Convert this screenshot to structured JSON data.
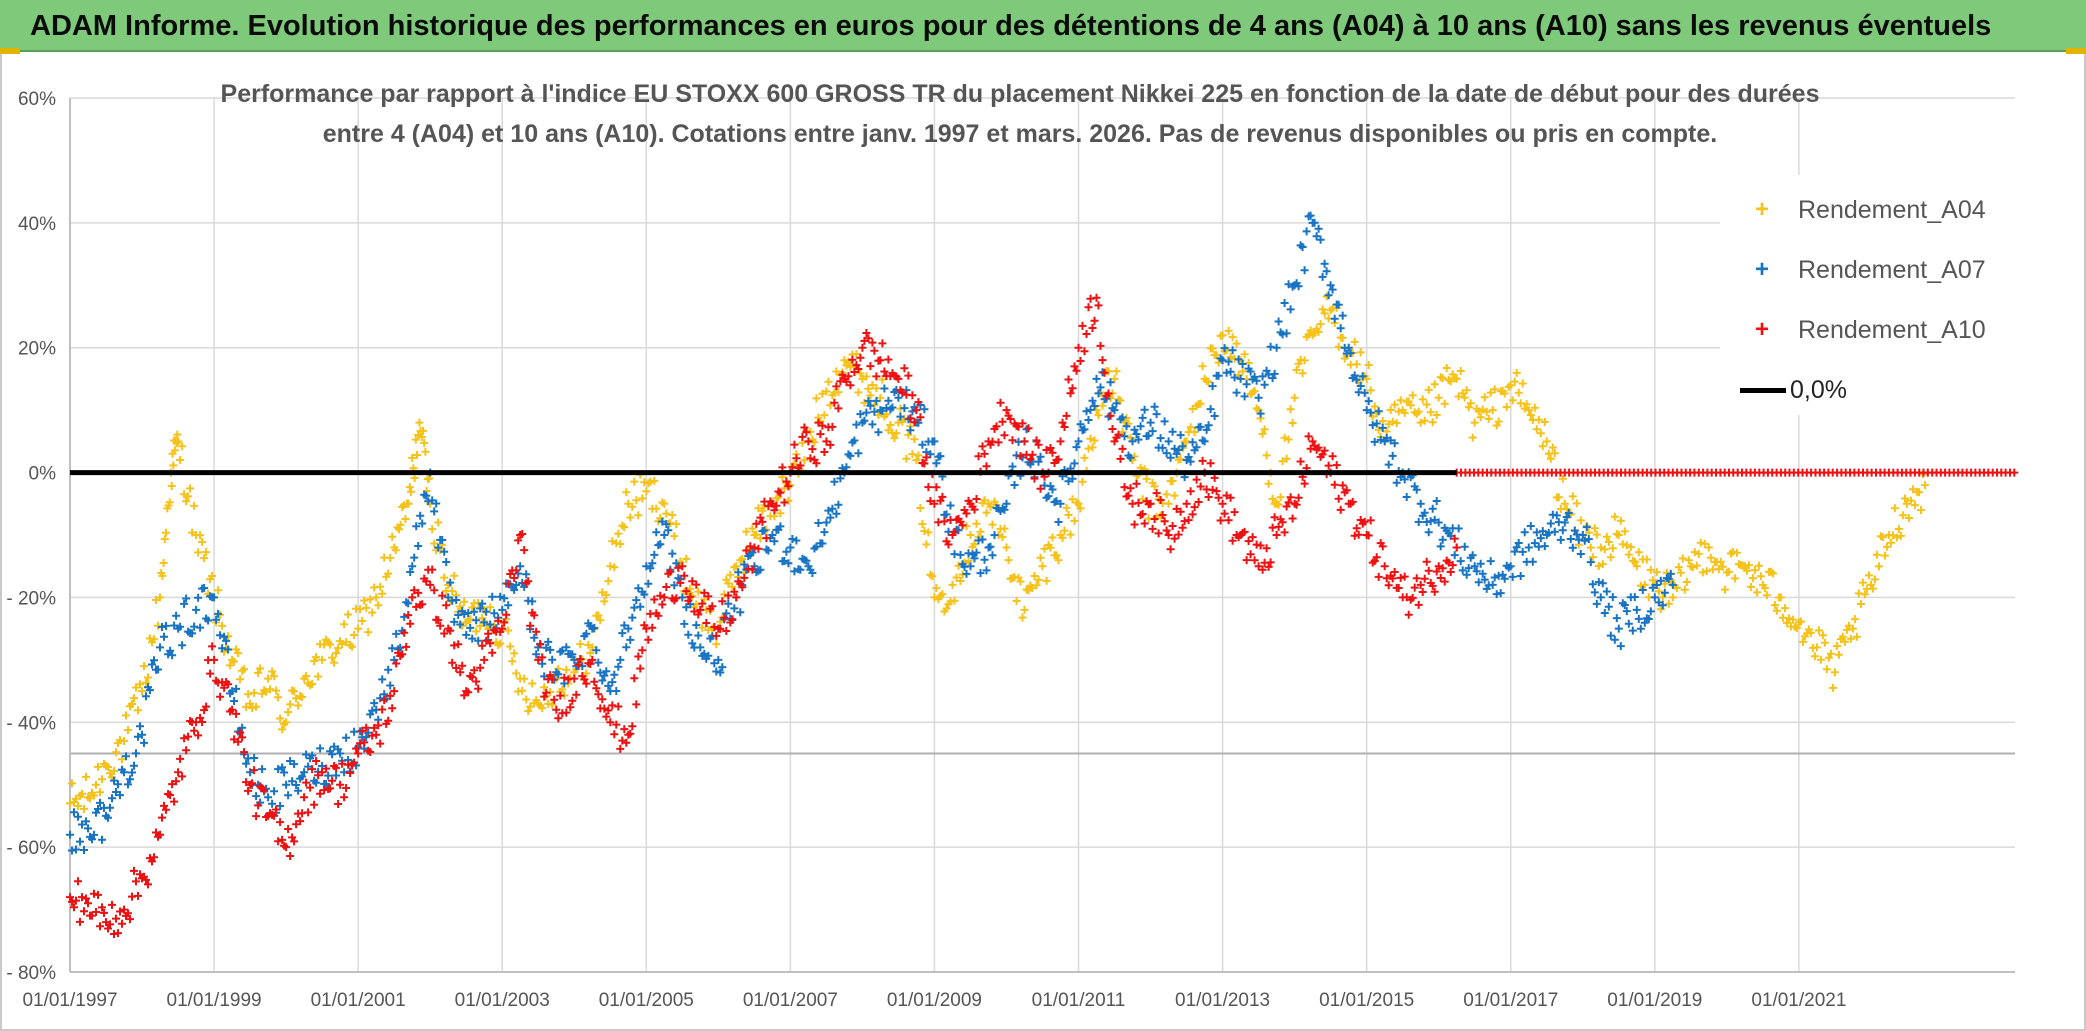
{
  "header": {
    "title": "ADAM Informe. Evolution historique des performances en euros pour des détentions de 4 ans (A04) à 10 ans (A10) sans les revenus éventuels"
  },
  "colors": {
    "banner": "#7fc97a",
    "A04": "#f5c21a",
    "A07": "#1874c2",
    "A10": "#ee1111",
    "zero_line": "#000000",
    "grid": "#d9d9d9"
  },
  "chart_data": {
    "type": "scatter",
    "title_line1": "Performance par rapport à l'indice EU STOXX 600 GROSS TR  du placement Nikkei 225 en fonction de la date de début pour des durées",
    "title_line2": "entre 4 (A04) et 10 ans (A10). Cotations entre janv. 1997 et mars. 2026. Pas de revenus disponibles ou pris en compte.",
    "xlabel": "",
    "ylabel": "",
    "x_range": [
      1997.0,
      2024.0
    ],
    "ylim": [
      -80,
      60
    ],
    "y_ticks": [
      60,
      40,
      20,
      0,
      -20,
      -40,
      -60,
      -80
    ],
    "y_tick_labels": [
      "60%",
      "40%",
      "20%",
      "0%",
      "- 20%",
      "- 40%",
      "- 60%",
      "- 80%"
    ],
    "x_ticks": [
      1997,
      1999,
      2001,
      2003,
      2005,
      2007,
      2009,
      2011,
      2013,
      2015,
      2017,
      2019,
      2021
    ],
    "x_tick_labels": [
      "01/01/1997",
      "01/01/1999",
      "01/01/2001",
      "01/01/2003",
      "01/01/2005",
      "01/01/2007",
      "01/01/2009",
      "01/01/2011",
      "01/01/2013",
      "01/01/2015",
      "01/01/2017",
      "01/01/2019",
      "01/01/2021"
    ],
    "legend_position": "right",
    "reference_line": {
      "y": 0,
      "label": "0,0%"
    },
    "series": [
      {
        "name": "Rendement_A04",
        "marker": "+",
        "x": [
          1997.0,
          1997.25,
          1997.5,
          1997.75,
          1998.0,
          1998.25,
          1998.4,
          1998.5,
          1998.75,
          1999.0,
          1999.25,
          1999.5,
          1999.75,
          2000.0,
          2000.25,
          2000.5,
          2000.75,
          2001.0,
          2001.25,
          2001.5,
          2001.7,
          2001.85,
          2002.0,
          2002.25,
          2002.5,
          2002.75,
          2003.0,
          2003.25,
          2003.5,
          2003.75,
          2004.0,
          2004.25,
          2004.5,
          2004.75,
          2005.0,
          2005.25,
          2005.5,
          2005.75,
          2006.0,
          2006.25,
          2006.5,
          2006.75,
          2007.0,
          2007.25,
          2007.5,
          2007.75,
          2008.0,
          2008.25,
          2008.5,
          2008.75,
          2009.0,
          2009.25,
          2009.5,
          2009.75,
          2010.0,
          2010.25,
          2010.5,
          2010.75,
          2011.0,
          2011.25,
          2011.5,
          2011.75,
          2012.0,
          2012.25,
          2012.5,
          2012.75,
          2013.0,
          2013.25,
          2013.5,
          2013.75,
          2014.0,
          2014.25,
          2014.5,
          2014.75,
          2015.0,
          2015.25,
          2015.5,
          2015.75,
          2016.0,
          2016.25,
          2016.5,
          2016.75,
          2017.0,
          2017.25,
          2017.5,
          2017.75,
          2018.0,
          2018.25,
          2018.5,
          2018.75,
          2019.0,
          2019.25,
          2019.5,
          2019.75,
          2020.0,
          2020.25,
          2020.5,
          2020.75,
          2021.0,
          2021.25,
          2021.5,
          2021.75,
          2022.0,
          2022.25,
          2022.5,
          2022.75
        ],
        "y": [
          -53,
          -52,
          -47,
          -43,
          -35,
          -20,
          0,
          5,
          -10,
          -20,
          -30,
          -37,
          -33,
          -40,
          -33,
          -30,
          -27,
          -25,
          -20,
          -12,
          -5,
          8,
          -5,
          -18,
          -24,
          -22,
          -25,
          -33,
          -37,
          -33,
          -32,
          -28,
          -15,
          -5,
          -3,
          -5,
          -15,
          -22,
          -25,
          -15,
          -10,
          -5,
          -2,
          5,
          13,
          18,
          15,
          12,
          8,
          2,
          -20,
          -18,
          -10,
          -5,
          -12,
          -22,
          -15,
          -10,
          -5,
          10,
          15,
          2,
          -5,
          -5,
          5,
          15,
          22,
          18,
          10,
          -5,
          12,
          22,
          26,
          20,
          15,
          5,
          10,
          8,
          12,
          15,
          8,
          10,
          14,
          10,
          5,
          -5,
          -10,
          -12,
          -10,
          -15,
          -18,
          -20,
          -15,
          -12,
          -16,
          -15,
          -18,
          -20,
          -24,
          -28,
          -32,
          -25,
          -18,
          -10,
          -5,
          -2
        ]
      },
      {
        "name": "Rendement_A07",
        "marker": "+",
        "x": [
          1997.0,
          1997.25,
          1997.5,
          1997.75,
          1998.0,
          1998.25,
          1998.5,
          1998.75,
          1999.0,
          1999.25,
          1999.5,
          1999.75,
          2000.0,
          2000.25,
          2000.5,
          2000.75,
          2001.0,
          2001.25,
          2001.5,
          2001.75,
          2002.0,
          2002.25,
          2002.5,
          2002.75,
          2003.0,
          2003.25,
          2003.5,
          2003.75,
          2004.0,
          2004.25,
          2004.5,
          2004.75,
          2005.0,
          2005.25,
          2005.5,
          2005.75,
          2006.0,
          2006.25,
          2006.5,
          2006.75,
          2007.0,
          2007.25,
          2007.5,
          2007.75,
          2008.0,
          2008.25,
          2008.5,
          2008.75,
          2009.0,
          2009.25,
          2009.5,
          2009.75,
          2010.0,
          2010.25,
          2010.5,
          2010.75,
          2011.0,
          2011.25,
          2011.5,
          2011.75,
          2012.0,
          2012.25,
          2012.5,
          2012.75,
          2013.0,
          2013.25,
          2013.5,
          2013.75,
          2014.0,
          2014.25,
          2014.5,
          2014.75,
          2015.0,
          2015.25,
          2015.5,
          2015.75,
          2016.0,
          2016.25,
          2016.5,
          2016.75,
          2017.0,
          2017.25,
          2017.5,
          2017.75,
          2018.0,
          2018.25,
          2018.5,
          2018.75,
          2019.0,
          2019.25
        ],
        "y": [
          -58,
          -57,
          -55,
          -48,
          -42,
          -28,
          -25,
          -22,
          -20,
          -35,
          -48,
          -52,
          -50,
          -48,
          -47,
          -45,
          -44,
          -38,
          -30,
          -15,
          0,
          -20,
          -26,
          -24,
          -22,
          -15,
          -28,
          -32,
          -30,
          -25,
          -35,
          -25,
          -15,
          -10,
          -20,
          -28,
          -30,
          -20,
          -15,
          -10,
          -12,
          -15,
          -8,
          0,
          8,
          10,
          12,
          8,
          5,
          -10,
          -15,
          -12,
          -5,
          5,
          0,
          -5,
          5,
          15,
          10,
          5,
          8,
          5,
          2,
          5,
          18,
          15,
          12,
          20,
          30,
          40,
          30,
          20,
          10,
          5,
          0,
          -5,
          -8,
          -12,
          -15,
          -18,
          -15,
          -12,
          -10,
          -8,
          -10,
          -20,
          -25,
          -22,
          -20,
          -18
        ]
      },
      {
        "name": "Rendement_A10",
        "marker": "+",
        "x": [
          1997.0,
          1997.25,
          1997.5,
          1997.75,
          1998.0,
          1998.25,
          1998.5,
          1998.75,
          1999.0,
          1999.25,
          1999.5,
          1999.75,
          2000.0,
          2000.25,
          2000.5,
          2000.75,
          2001.0,
          2001.25,
          2001.5,
          2001.75,
          2002.0,
          2002.25,
          2002.5,
          2002.75,
          2003.0,
          2003.25,
          2003.5,
          2003.75,
          2004.0,
          2004.25,
          2004.5,
          2004.75,
          2005.0,
          2005.25,
          2005.5,
          2005.75,
          2006.0,
          2006.25,
          2006.5,
          2006.75,
          2007.0,
          2007.25,
          2007.5,
          2007.75,
          2008.0,
          2008.25,
          2008.5,
          2008.75,
          2009.0,
          2009.25,
          2009.5,
          2009.75,
          2010.0,
          2010.25,
          2010.5,
          2010.75,
          2011.0,
          2011.25,
          2011.5,
          2011.75,
          2012.0,
          2012.25,
          2012.5,
          2012.75,
          2013.0,
          2013.25,
          2013.5,
          2013.75,
          2014.0,
          2014.25,
          2014.5,
          2014.75,
          2015.0,
          2015.25,
          2015.5,
          2015.75,
          2016.0,
          2016.25
        ],
        "y": [
          -68,
          -69,
          -72,
          -70,
          -65,
          -58,
          -48,
          -40,
          -30,
          -38,
          -50,
          -55,
          -60,
          -52,
          -48,
          -50,
          -45,
          -42,
          -35,
          -20,
          -18,
          -25,
          -35,
          -30,
          -25,
          -10,
          -30,
          -38,
          -33,
          -30,
          -40,
          -42,
          -25,
          -20,
          -15,
          -22,
          -25,
          -20,
          -12,
          -5,
          0,
          5,
          5,
          15,
          20,
          18,
          15,
          10,
          -5,
          -10,
          -5,
          5,
          10,
          5,
          0,
          5,
          20,
          28,
          5,
          -5,
          -5,
          -10,
          -5,
          0,
          -5,
          -10,
          -15,
          -10,
          -5,
          5,
          0,
          -5,
          -10,
          -15,
          -20,
          -18,
          -15,
          -12
        ]
      }
    ],
    "zero_after_series": {
      "name": "Rendement_A10",
      "x_from": 2016.25,
      "x_to": 2024.0,
      "y": 0
    }
  },
  "legend": {
    "a04_label": "Rendement_A04",
    "a07_label": "Rendement_A07",
    "a10_label": "Rendement_A10",
    "zero_label": "0,0%",
    "marker_symbol": "+"
  }
}
